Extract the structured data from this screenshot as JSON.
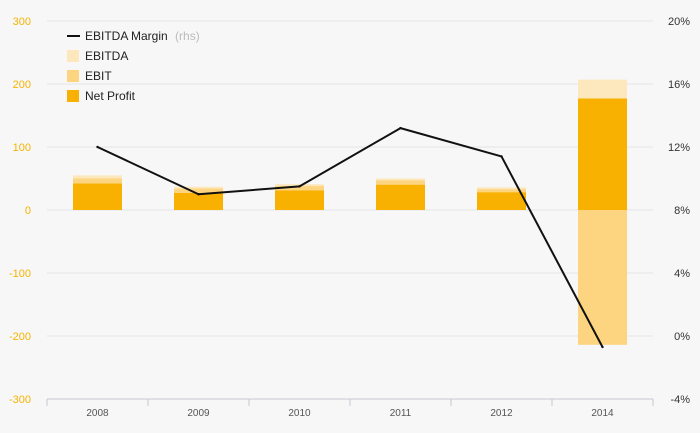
{
  "colors": {
    "background": "#f7f7f8",
    "grid": "#e4e4e8",
    "ebitda": "#fde8bd",
    "ebit": "#fdd581",
    "net_profit": "#f8b100",
    "line": "#111111",
    "left_tick": "#f5b301",
    "right_tick": "#333333",
    "x_tick": "#555555"
  },
  "chart_data": {
    "type": "bar",
    "categories": [
      "2008",
      "2009",
      "2010",
      "2011",
      "2012",
      "2014"
    ],
    "series": [
      {
        "name": "EBITDA",
        "kind": "bar",
        "axis": "left",
        "values": [
          55,
          37,
          41,
          50,
          36,
          207
        ]
      },
      {
        "name": "EBIT",
        "kind": "bar",
        "axis": "left",
        "values": [
          50,
          34,
          38,
          47,
          33,
          -214
        ]
      },
      {
        "name": "Net Profit",
        "kind": "bar",
        "axis": "left",
        "values": [
          42,
          27,
          31,
          40,
          28,
          177
        ]
      },
      {
        "name": "EBITDA Margin",
        "name_suffix": "(rhs)",
        "kind": "line",
        "axis": "right",
        "values": [
          12.0,
          9.0,
          9.5,
          13.2,
          11.4,
          -0.7
        ]
      }
    ],
    "y_left": {
      "range": [
        -300,
        300
      ],
      "ticks": [
        "300",
        "200",
        "100",
        "0",
        "-100",
        "-200",
        "-300"
      ],
      "tick_values": [
        300,
        200,
        100,
        0,
        -100,
        -200,
        -300
      ]
    },
    "y_right": {
      "range": [
        -4,
        20
      ],
      "ticks": [
        "20%",
        "16%",
        "12%",
        "8%",
        "4%",
        "0%",
        "-4%"
      ],
      "tick_values": [
        20,
        16,
        12,
        8,
        4,
        0,
        -4
      ]
    },
    "grid": true,
    "legend_position": "top-left"
  }
}
